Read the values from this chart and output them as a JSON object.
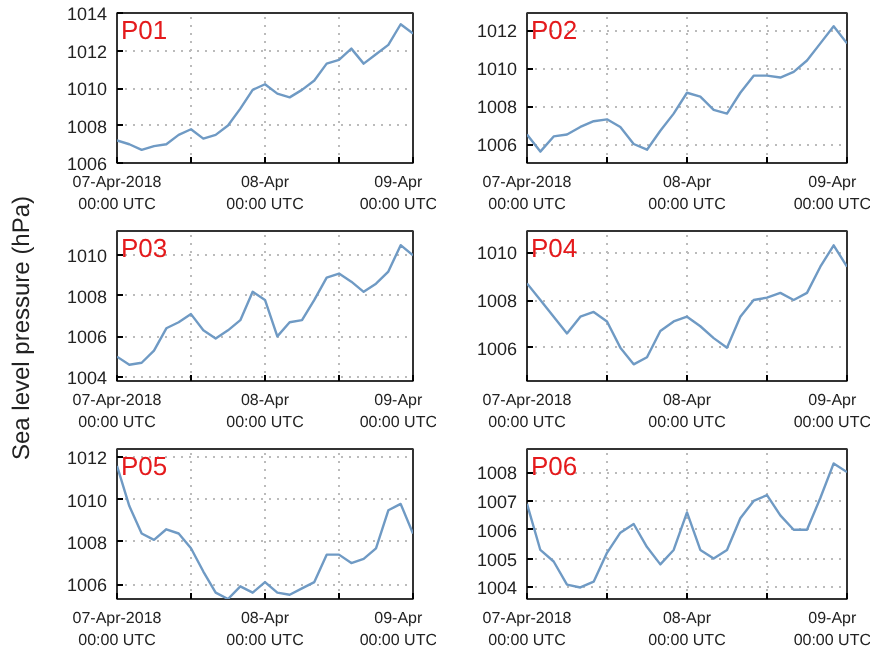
{
  "chart_data": [
    {
      "type": "line",
      "title": "P01",
      "x": [
        "2018-04-07T00:00",
        "2018-04-07T02:00",
        "2018-04-07T04:00",
        "2018-04-07T06:00",
        "2018-04-07T08:00",
        "2018-04-07T10:00",
        "2018-04-07T12:00",
        "2018-04-07T14:00",
        "2018-04-07T16:00",
        "2018-04-07T18:00",
        "2018-04-07T20:00",
        "2018-04-07T22:00",
        "2018-04-08T00:00",
        "2018-04-08T02:00",
        "2018-04-08T04:00",
        "2018-04-08T06:00",
        "2018-04-08T08:00",
        "2018-04-08T10:00",
        "2018-04-08T12:00",
        "2018-04-08T14:00",
        "2018-04-08T16:00",
        "2018-04-08T18:00",
        "2018-04-08T20:00",
        "2018-04-08T22:00",
        "2018-04-09T00:00"
      ],
      "series": [
        {
          "color": "#6f9ac4",
          "values": [
            1007.2,
            1007.0,
            1006.7,
            1006.9,
            1007.0,
            1007.5,
            1007.8,
            1007.3,
            1007.5,
            1008.0,
            1008.9,
            1009.9,
            1010.2,
            1009.7,
            1009.5,
            1009.9,
            1010.4,
            1011.3,
            1011.5,
            1012.1,
            1011.3,
            1011.8,
            1012.3,
            1013.4,
            1012.9
          ]
        }
      ],
      "xlim": [
        "2018-04-07T00:00",
        "2018-04-09T00:00"
      ],
      "xticks": [
        {
          "value": "2018-04-07T00:00",
          "label": "07-Apr-2018\n00:00 UTC"
        },
        {
          "value": "2018-04-07T12:00",
          "label": null
        },
        {
          "value": "2018-04-08T00:00",
          "label": "08-Apr\n00:00 UTC"
        },
        {
          "value": "2018-04-08T12:00",
          "label": null
        },
        {
          "value": "2018-04-09T00:00",
          "label": "09-Apr\n00:00 UTC"
        }
      ],
      "ylim": [
        1006,
        1014
      ],
      "yticks": [
        1006,
        1008,
        1010,
        1012,
        1014
      ],
      "grid": true
    },
    {
      "type": "line",
      "title": "P02",
      "x": [
        "2018-04-07T00:00",
        "2018-04-07T02:00",
        "2018-04-07T04:00",
        "2018-04-07T06:00",
        "2018-04-07T08:00",
        "2018-04-07T10:00",
        "2018-04-07T12:00",
        "2018-04-07T14:00",
        "2018-04-07T16:00",
        "2018-04-07T18:00",
        "2018-04-07T20:00",
        "2018-04-07T22:00",
        "2018-04-08T00:00",
        "2018-04-08T02:00",
        "2018-04-08T04:00",
        "2018-04-08T06:00",
        "2018-04-08T08:00",
        "2018-04-08T10:00",
        "2018-04-08T12:00",
        "2018-04-08T14:00",
        "2018-04-08T16:00",
        "2018-04-08T18:00",
        "2018-04-08T20:00",
        "2018-04-08T22:00",
        "2018-04-09T00:00"
      ],
      "series": [
        {
          "color": "#6f9ac4",
          "values": [
            1006.5,
            1005.6,
            1006.4,
            1006.5,
            1006.9,
            1007.2,
            1007.3,
            1006.9,
            1006.0,
            1005.7,
            1006.7,
            1007.6,
            1008.7,
            1008.5,
            1007.8,
            1007.6,
            1008.7,
            1009.6,
            1009.6,
            1009.5,
            1009.8,
            1010.4,
            1011.3,
            1012.2,
            1011.3
          ]
        }
      ],
      "xlim": [
        "2018-04-07T00:00",
        "2018-04-09T00:00"
      ],
      "xticks": [
        {
          "value": "2018-04-07T00:00",
          "label": "07-Apr-2018\n00:00 UTC"
        },
        {
          "value": "2018-04-07T12:00",
          "label": null
        },
        {
          "value": "2018-04-08T00:00",
          "label": "08-Apr\n00:00 UTC"
        },
        {
          "value": "2018-04-08T12:00",
          "label": null
        },
        {
          "value": "2018-04-09T00:00",
          "label": "09-Apr\n00:00 UTC"
        }
      ],
      "ylim": [
        1005,
        1012.9
      ],
      "yticks": [
        1006,
        1008,
        1010,
        1012
      ],
      "grid": true
    },
    {
      "type": "line",
      "title": "P03",
      "ylabel": "Sea level pressure (hPa)",
      "x": [
        "2018-04-07T00:00",
        "2018-04-07T02:00",
        "2018-04-07T04:00",
        "2018-04-07T06:00",
        "2018-04-07T08:00",
        "2018-04-07T10:00",
        "2018-04-07T12:00",
        "2018-04-07T14:00",
        "2018-04-07T16:00",
        "2018-04-07T18:00",
        "2018-04-07T20:00",
        "2018-04-07T22:00",
        "2018-04-08T00:00",
        "2018-04-08T02:00",
        "2018-04-08T04:00",
        "2018-04-08T06:00",
        "2018-04-08T08:00",
        "2018-04-08T10:00",
        "2018-04-08T12:00",
        "2018-04-08T14:00",
        "2018-04-08T16:00",
        "2018-04-08T18:00",
        "2018-04-08T20:00",
        "2018-04-08T22:00",
        "2018-04-09T00:00"
      ],
      "series": [
        {
          "color": "#6f9ac4",
          "values": [
            1005.0,
            1004.6,
            1004.7,
            1005.3,
            1006.4,
            1006.7,
            1007.1,
            1006.3,
            1005.9,
            1006.3,
            1006.8,
            1008.2,
            1007.8,
            1006.0,
            1006.7,
            1006.8,
            1007.8,
            1008.9,
            1009.1,
            1008.7,
            1008.2,
            1008.6,
            1009.2,
            1010.5,
            1010.0
          ]
        }
      ],
      "xlim": [
        "2018-04-07T00:00",
        "2018-04-09T00:00"
      ],
      "xticks": [
        {
          "value": "2018-04-07T00:00",
          "label": "07-Apr-2018\n00:00 UTC"
        },
        {
          "value": "2018-04-07T12:00",
          "label": null
        },
        {
          "value": "2018-04-08T00:00",
          "label": "08-Apr\n00:00 UTC"
        },
        {
          "value": "2018-04-08T12:00",
          "label": null
        },
        {
          "value": "2018-04-09T00:00",
          "label": "09-Apr\n00:00 UTC"
        }
      ],
      "ylim": [
        1003.8,
        1011.2
      ],
      "yticks": [
        1004,
        1006,
        1008,
        1010
      ],
      "grid": true
    },
    {
      "type": "line",
      "title": "P04",
      "x": [
        "2018-04-07T00:00",
        "2018-04-07T02:00",
        "2018-04-07T04:00",
        "2018-04-07T06:00",
        "2018-04-07T08:00",
        "2018-04-07T10:00",
        "2018-04-07T12:00",
        "2018-04-07T14:00",
        "2018-04-07T16:00",
        "2018-04-07T18:00",
        "2018-04-07T20:00",
        "2018-04-07T22:00",
        "2018-04-08T00:00",
        "2018-04-08T02:00",
        "2018-04-08T04:00",
        "2018-04-08T06:00",
        "2018-04-08T08:00",
        "2018-04-08T10:00",
        "2018-04-08T12:00",
        "2018-04-08T14:00",
        "2018-04-08T16:00",
        "2018-04-08T18:00",
        "2018-04-08T20:00",
        "2018-04-08T22:00",
        "2018-04-09T00:00"
      ],
      "series": [
        {
          "color": "#6f9ac4",
          "values": [
            1008.7,
            1008.0,
            1007.3,
            1006.6,
            1007.3,
            1007.5,
            1007.1,
            1006.0,
            1005.3,
            1005.6,
            1006.7,
            1007.1,
            1007.3,
            1006.9,
            1006.4,
            1006.0,
            1007.3,
            1008.0,
            1008.1,
            1008.3,
            1008.0,
            1008.3,
            1009.4,
            1010.3,
            1009.4
          ]
        }
      ],
      "xlim": [
        "2018-04-07T00:00",
        "2018-04-09T00:00"
      ],
      "xticks": [
        {
          "value": "2018-04-07T00:00",
          "label": "07-Apr-2018\n00:00 UTC"
        },
        {
          "value": "2018-04-07T12:00",
          "label": null
        },
        {
          "value": "2018-04-08T00:00",
          "label": "08-Apr\n00:00 UTC"
        },
        {
          "value": "2018-04-08T12:00",
          "label": null
        },
        {
          "value": "2018-04-09T00:00",
          "label": "09-Apr\n00:00 UTC"
        }
      ],
      "ylim": [
        1004.6,
        1010.9
      ],
      "yticks": [
        1006,
        1008,
        1010
      ],
      "grid": true
    },
    {
      "type": "line",
      "title": "P05",
      "x": [
        "2018-04-07T00:00",
        "2018-04-07T02:00",
        "2018-04-07T04:00",
        "2018-04-07T06:00",
        "2018-04-07T08:00",
        "2018-04-07T10:00",
        "2018-04-07T12:00",
        "2018-04-07T14:00",
        "2018-04-07T16:00",
        "2018-04-07T18:00",
        "2018-04-07T20:00",
        "2018-04-07T22:00",
        "2018-04-08T00:00",
        "2018-04-08T02:00",
        "2018-04-08T04:00",
        "2018-04-08T06:00",
        "2018-04-08T08:00",
        "2018-04-08T10:00",
        "2018-04-08T12:00",
        "2018-04-08T14:00",
        "2018-04-08T16:00",
        "2018-04-08T18:00",
        "2018-04-08T20:00",
        "2018-04-08T22:00",
        "2018-04-09T00:00"
      ],
      "series": [
        {
          "color": "#6f9ac4",
          "values": [
            1011.6,
            1009.7,
            1008.4,
            1008.1,
            1008.6,
            1008.4,
            1007.7,
            1006.6,
            1005.6,
            1005.3,
            1005.9,
            1005.6,
            1006.1,
            1005.6,
            1005.5,
            1005.8,
            1006.1,
            1007.4,
            1007.4,
            1007.0,
            1007.2,
            1007.7,
            1009.5,
            1009.8,
            1008.4
          ]
        }
      ],
      "xlim": [
        "2018-04-07T00:00",
        "2018-04-09T00:00"
      ],
      "xticks": [
        {
          "value": "2018-04-07T00:00",
          "label": "07-Apr-2018\n00:00 UTC"
        },
        {
          "value": "2018-04-07T12:00",
          "label": null
        },
        {
          "value": "2018-04-08T00:00",
          "label": "08-Apr\n00:00 UTC"
        },
        {
          "value": "2018-04-08T12:00",
          "label": null
        },
        {
          "value": "2018-04-09T00:00",
          "label": "09-Apr\n00:00 UTC"
        }
      ],
      "ylim": [
        1005.3,
        1012.4
      ],
      "yticks": [
        1006,
        1008,
        1010,
        1012
      ],
      "grid": true
    },
    {
      "type": "line",
      "title": "P06",
      "x": [
        "2018-04-07T00:00",
        "2018-04-07T02:00",
        "2018-04-07T04:00",
        "2018-04-07T06:00",
        "2018-04-07T08:00",
        "2018-04-07T10:00",
        "2018-04-07T12:00",
        "2018-04-07T14:00",
        "2018-04-07T16:00",
        "2018-04-07T18:00",
        "2018-04-07T20:00",
        "2018-04-07T22:00",
        "2018-04-08T00:00",
        "2018-04-08T02:00",
        "2018-04-08T04:00",
        "2018-04-08T06:00",
        "2018-04-08T08:00",
        "2018-04-08T10:00",
        "2018-04-08T12:00",
        "2018-04-08T14:00",
        "2018-04-08T16:00",
        "2018-04-08T18:00",
        "2018-04-08T20:00",
        "2018-04-08T22:00",
        "2018-04-09T00:00"
      ],
      "series": [
        {
          "color": "#6f9ac4",
          "values": [
            1006.9,
            1005.3,
            1004.9,
            1004.1,
            1004.0,
            1004.2,
            1005.2,
            1005.9,
            1006.2,
            1005.4,
            1004.8,
            1005.3,
            1006.6,
            1005.3,
            1005.0,
            1005.3,
            1006.4,
            1007.0,
            1007.2,
            1006.5,
            1006.0,
            1006.0,
            1007.1,
            1008.3,
            1008.0
          ]
        }
      ],
      "xlim": [
        "2018-04-07T00:00",
        "2018-04-09T00:00"
      ],
      "xticks": [
        {
          "value": "2018-04-07T00:00",
          "label": "07-Apr-2018\n00:00 UTC"
        },
        {
          "value": "2018-04-07T12:00",
          "label": null
        },
        {
          "value": "2018-04-08T00:00",
          "label": "08-Apr\n00:00 UTC"
        },
        {
          "value": "2018-04-08T12:00",
          "label": null
        },
        {
          "value": "2018-04-09T00:00",
          "label": "09-Apr\n00:00 UTC"
        }
      ],
      "ylim": [
        1003.6,
        1008.8
      ],
      "yticks": [
        1004,
        1005,
        1006,
        1007,
        1008
      ],
      "grid": true
    }
  ]
}
